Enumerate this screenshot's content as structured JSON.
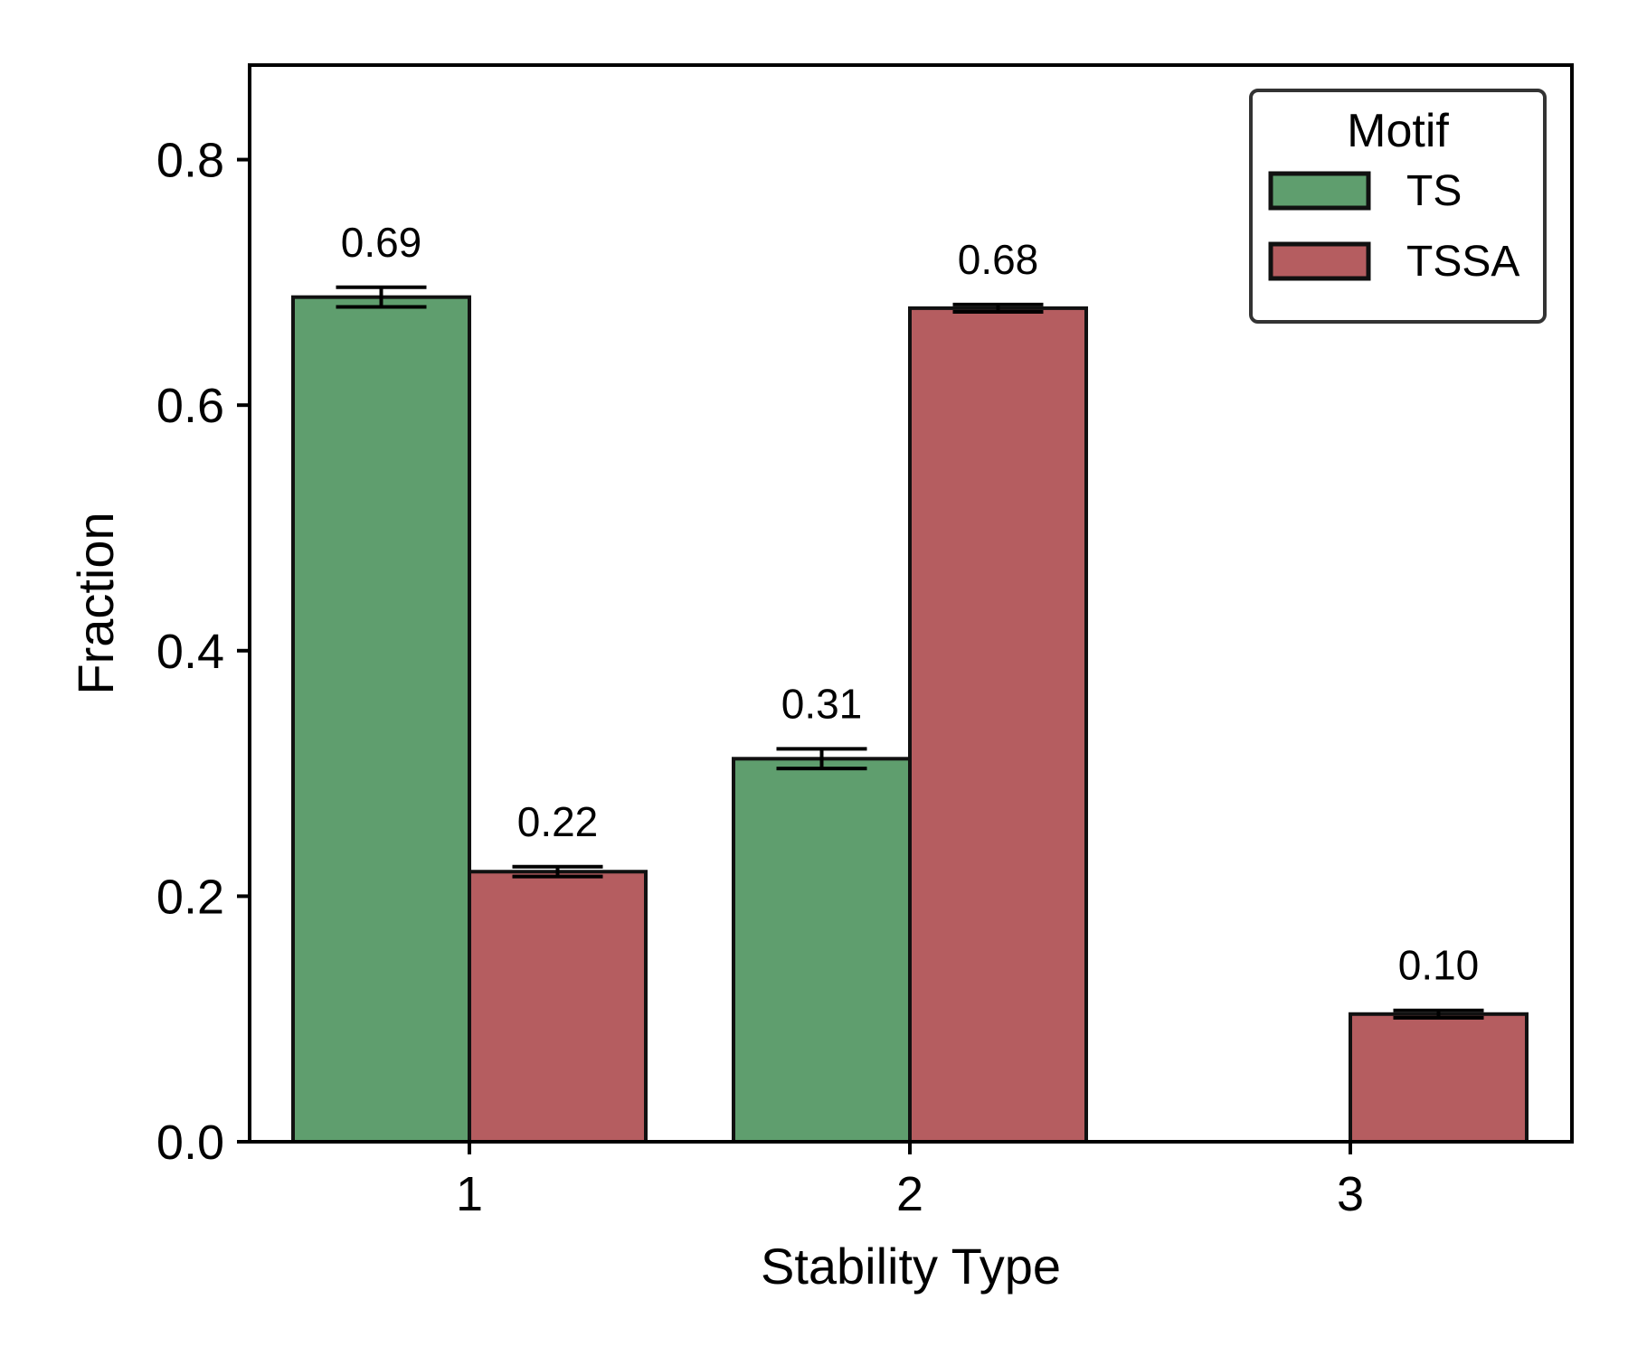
{
  "chart_data": {
    "type": "bar",
    "title": "",
    "xlabel": "Stability Type",
    "ylabel": "Fraction",
    "categories": [
      "1",
      "2",
      "3"
    ],
    "ylim": [
      0,
      0.877
    ],
    "yticks": [
      "0.0",
      "0.2",
      "0.4",
      "0.6",
      "0.8"
    ],
    "grid": false,
    "legend": {
      "title": "Motif",
      "placement": "top-right"
    },
    "series": [
      {
        "name": "TS",
        "color": "#5f9e6e",
        "values": [
          0.688,
          0.312,
          null
        ],
        "errors": [
          0.008,
          0.008,
          null
        ],
        "labels": [
          "0.69",
          "0.31",
          ""
        ]
      },
      {
        "name": "TSSA",
        "color": "#b55d60",
        "values": [
          0.22,
          0.679,
          0.104
        ],
        "errors": [
          0.004,
          0.003,
          0.003
        ],
        "labels": [
          "0.22",
          "0.68",
          "0.10"
        ]
      }
    ]
  }
}
